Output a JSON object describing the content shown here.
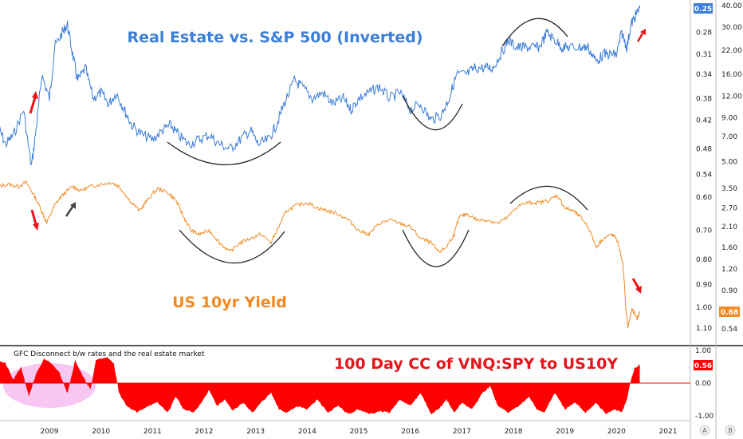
{
  "chart_data": [
    {
      "type": "line",
      "series": [
        {
          "name": "Real Estate vs. S&P 500 (Inverted)",
          "color": "#3b7dd8",
          "last_value_label": "0.25",
          "points": [
            [
              2008.0,
              0.43
            ],
            [
              2008.15,
              0.47
            ],
            [
              2008.3,
              0.45
            ],
            [
              2008.5,
              0.4
            ],
            [
              2008.65,
              0.52
            ],
            [
              2008.75,
              0.43
            ],
            [
              2008.85,
              0.34
            ],
            [
              2009.0,
              0.38
            ],
            [
              2009.1,
              0.3
            ],
            [
              2009.25,
              0.28
            ],
            [
              2009.35,
              0.27
            ],
            [
              2009.45,
              0.31
            ],
            [
              2009.55,
              0.35
            ],
            [
              2009.7,
              0.33
            ],
            [
              2009.85,
              0.38
            ],
            [
              2010.0,
              0.37
            ],
            [
              2010.15,
              0.39
            ],
            [
              2010.3,
              0.37
            ],
            [
              2010.45,
              0.4
            ],
            [
              2010.6,
              0.43
            ],
            [
              2010.8,
              0.45
            ],
            [
              2011.0,
              0.46
            ],
            [
              2011.2,
              0.44
            ],
            [
              2011.35,
              0.43
            ],
            [
              2011.5,
              0.45
            ],
            [
              2011.7,
              0.47
            ],
            [
              2011.9,
              0.46
            ],
            [
              2012.1,
              0.45
            ],
            [
              2012.3,
              0.47
            ],
            [
              2012.5,
              0.48
            ],
            [
              2012.7,
              0.46
            ],
            [
              2012.9,
              0.44
            ],
            [
              2013.05,
              0.47
            ],
            [
              2013.25,
              0.46
            ],
            [
              2013.4,
              0.43
            ],
            [
              2013.55,
              0.39
            ],
            [
              2013.75,
              0.35
            ],
            [
              2013.9,
              0.36
            ],
            [
              2014.1,
              0.38
            ],
            [
              2014.3,
              0.37
            ],
            [
              2014.5,
              0.39
            ],
            [
              2014.7,
              0.38
            ],
            [
              2014.85,
              0.4
            ],
            [
              2015.0,
              0.38
            ],
            [
              2015.2,
              0.37
            ],
            [
              2015.4,
              0.36
            ],
            [
              2015.6,
              0.38
            ],
            [
              2015.8,
              0.37
            ],
            [
              2016.0,
              0.4
            ],
            [
              2016.2,
              0.39
            ],
            [
              2016.4,
              0.42
            ],
            [
              2016.6,
              0.41
            ],
            [
              2016.75,
              0.38
            ],
            [
              2016.9,
              0.34
            ],
            [
              2017.1,
              0.34
            ],
            [
              2017.25,
              0.33
            ],
            [
              2017.45,
              0.33
            ],
            [
              2017.6,
              0.33
            ],
            [
              2017.75,
              0.31
            ],
            [
              2017.9,
              0.29
            ],
            [
              2018.05,
              0.3
            ],
            [
              2018.2,
              0.3
            ],
            [
              2018.35,
              0.3
            ],
            [
              2018.5,
              0.3
            ],
            [
              2018.65,
              0.28
            ],
            [
              2018.8,
              0.29
            ],
            [
              2018.95,
              0.3
            ],
            [
              2019.1,
              0.3
            ],
            [
              2019.3,
              0.3
            ],
            [
              2019.45,
              0.3
            ],
            [
              2019.6,
              0.32
            ],
            [
              2019.75,
              0.31
            ],
            [
              2019.9,
              0.31
            ],
            [
              2020.0,
              0.31
            ],
            [
              2020.1,
              0.28
            ],
            [
              2020.2,
              0.3
            ],
            [
              2020.28,
              0.27
            ],
            [
              2020.36,
              0.26
            ],
            [
              2020.45,
              0.25
            ]
          ]
        },
        {
          "name": "US 10yr Yield",
          "color": "#f08a24",
          "last_value_label": "0.68",
          "points": [
            [
              2008.0,
              3.6
            ],
            [
              2008.2,
              3.7
            ],
            [
              2008.4,
              3.6
            ],
            [
              2008.55,
              3.8
            ],
            [
              2008.7,
              3.2
            ],
            [
              2008.85,
              2.6
            ],
            [
              2008.95,
              2.2
            ],
            [
              2009.1,
              2.8
            ],
            [
              2009.25,
              3.2
            ],
            [
              2009.45,
              3.6
            ],
            [
              2009.6,
              3.4
            ],
            [
              2009.8,
              3.6
            ],
            [
              2010.0,
              3.7
            ],
            [
              2010.2,
              3.8
            ],
            [
              2010.35,
              3.6
            ],
            [
              2010.55,
              3.0
            ],
            [
              2010.75,
              2.6
            ],
            [
              2010.9,
              3.0
            ],
            [
              2011.1,
              3.5
            ],
            [
              2011.3,
              3.3
            ],
            [
              2011.45,
              3.0
            ],
            [
              2011.6,
              2.4
            ],
            [
              2011.75,
              2.0
            ],
            [
              2011.9,
              1.9
            ],
            [
              2012.1,
              2.0
            ],
            [
              2012.3,
              1.7
            ],
            [
              2012.5,
              1.5
            ],
            [
              2012.7,
              1.7
            ],
            [
              2012.9,
              1.8
            ],
            [
              2013.1,
              1.9
            ],
            [
              2013.3,
              1.7
            ],
            [
              2013.45,
              2.1
            ],
            [
              2013.6,
              2.6
            ],
            [
              2013.8,
              2.8
            ],
            [
              2014.0,
              2.9
            ],
            [
              2014.2,
              2.7
            ],
            [
              2014.4,
              2.6
            ],
            [
              2014.6,
              2.5
            ],
            [
              2014.8,
              2.3
            ],
            [
              2015.0,
              2.0
            ],
            [
              2015.2,
              1.9
            ],
            [
              2015.4,
              2.2
            ],
            [
              2015.6,
              2.3
            ],
            [
              2015.8,
              2.2
            ],
            [
              2016.0,
              2.1
            ],
            [
              2016.2,
              1.8
            ],
            [
              2016.4,
              1.7
            ],
            [
              2016.55,
              1.5
            ],
            [
              2016.7,
              1.6
            ],
            [
              2016.85,
              1.9
            ],
            [
              2016.95,
              2.4
            ],
            [
              2017.1,
              2.5
            ],
            [
              2017.3,
              2.3
            ],
            [
              2017.5,
              2.3
            ],
            [
              2017.7,
              2.2
            ],
            [
              2017.9,
              2.4
            ],
            [
              2018.1,
              2.8
            ],
            [
              2018.3,
              2.9
            ],
            [
              2018.5,
              2.9
            ],
            [
              2018.7,
              3.0
            ],
            [
              2018.85,
              3.2
            ],
            [
              2019.0,
              2.7
            ],
            [
              2019.15,
              2.6
            ],
            [
              2019.3,
              2.4
            ],
            [
              2019.45,
              2.1
            ],
            [
              2019.6,
              1.6
            ],
            [
              2019.75,
              1.8
            ],
            [
              2019.9,
              1.9
            ],
            [
              2020.0,
              1.8
            ],
            [
              2020.12,
              1.3
            ],
            [
              2020.18,
              0.7
            ],
            [
              2020.22,
              0.55
            ],
            [
              2020.3,
              0.7
            ],
            [
              2020.4,
              0.62
            ],
            [
              2020.45,
              0.68
            ]
          ]
        }
      ],
      "annotations": [
        "Real Estate vs. S&P 500 (Inverted)",
        "US 10yr Yield"
      ],
      "left_axis_ticks": [
        "0.25",
        "0.28",
        "0.31",
        "0.34",
        "0.38",
        "0.42",
        "0.48",
        "0.54",
        "0.60",
        "0.70",
        "0.80",
        "0.90",
        "1.00",
        "1.10"
      ],
      "right_axis_ticks": [
        "40.00",
        "30.00",
        "22.00",
        "16.00",
        "12.00",
        "9.00",
        "7.00",
        "5.00",
        "3.50",
        "2.70",
        "2.10",
        "1.60",
        "1.20",
        "0.90",
        "0.54"
      ],
      "grid": false
    },
    {
      "type": "area",
      "series": [
        {
          "name": "100 Day CC of VNQ:SPY to US10Y",
          "color": "#ff0000",
          "last_value_label": "0.56",
          "points": [
            [
              2008.0,
              0.7
            ],
            [
              2008.15,
              0.6
            ],
            [
              2008.3,
              0.1
            ],
            [
              2008.45,
              0.5
            ],
            [
              2008.6,
              -0.4
            ],
            [
              2008.75,
              0.3
            ],
            [
              2008.9,
              0.75
            ],
            [
              2009.05,
              0.6
            ],
            [
              2009.2,
              0.3
            ],
            [
              2009.35,
              -0.3
            ],
            [
              2009.5,
              0.7
            ],
            [
              2009.65,
              0.2
            ],
            [
              2009.8,
              -0.2
            ],
            [
              2009.9,
              0.7
            ],
            [
              2010.1,
              0.8
            ],
            [
              2010.25,
              0.6
            ],
            [
              2010.35,
              -0.3
            ],
            [
              2010.5,
              -0.7
            ],
            [
              2010.7,
              -0.9
            ],
            [
              2010.9,
              -0.7
            ],
            [
              2011.1,
              -0.6
            ],
            [
              2011.3,
              -0.9
            ],
            [
              2011.45,
              -0.4
            ],
            [
              2011.6,
              -0.8
            ],
            [
              2011.8,
              -0.9
            ],
            [
              2011.95,
              -0.6
            ],
            [
              2012.1,
              -0.2
            ],
            [
              2012.25,
              -0.7
            ],
            [
              2012.4,
              -0.5
            ],
            [
              2012.55,
              -0.85
            ],
            [
              2012.75,
              -0.6
            ],
            [
              2012.95,
              -0.9
            ],
            [
              2013.1,
              -0.6
            ],
            [
              2013.3,
              -0.3
            ],
            [
              2013.45,
              -0.8
            ],
            [
              2013.6,
              -0.9
            ],
            [
              2013.8,
              -0.7
            ],
            [
              2014.0,
              -0.8
            ],
            [
              2014.2,
              -0.5
            ],
            [
              2014.4,
              -0.9
            ],
            [
              2014.6,
              -0.7
            ],
            [
              2014.8,
              -0.95
            ],
            [
              2015.0,
              -0.8
            ],
            [
              2015.2,
              -0.95
            ],
            [
              2015.4,
              -0.85
            ],
            [
              2015.6,
              -0.9
            ],
            [
              2015.8,
              -0.5
            ],
            [
              2016.0,
              -0.7
            ],
            [
              2016.2,
              -0.3
            ],
            [
              2016.4,
              -0.95
            ],
            [
              2016.55,
              -0.8
            ],
            [
              2016.7,
              -0.5
            ],
            [
              2016.85,
              -0.9
            ],
            [
              2017.0,
              -0.6
            ],
            [
              2017.2,
              -0.8
            ],
            [
              2017.4,
              -0.3
            ],
            [
              2017.55,
              -0.1
            ],
            [
              2017.7,
              -0.7
            ],
            [
              2017.9,
              -0.9
            ],
            [
              2018.1,
              -0.7
            ],
            [
              2018.3,
              -0.4
            ],
            [
              2018.45,
              -0.8
            ],
            [
              2018.6,
              -0.9
            ],
            [
              2018.8,
              -0.3
            ],
            [
              2019.0,
              -0.8
            ],
            [
              2019.2,
              -0.6
            ],
            [
              2019.4,
              -0.9
            ],
            [
              2019.6,
              -0.6
            ],
            [
              2019.8,
              -0.95
            ],
            [
              2019.95,
              -0.8
            ],
            [
              2020.1,
              -0.9
            ],
            [
              2020.2,
              -0.5
            ],
            [
              2020.28,
              0.1
            ],
            [
              2020.35,
              0.45
            ],
            [
              2020.45,
              0.56
            ]
          ]
        }
      ],
      "annotations": [
        "GFC Disconnect b/w rates and the real estate market",
        "100 Day CC of VNQ:SPY to US10Y"
      ],
      "y_axis_ticks": [
        "1.00",
        "0.00",
        "-1.00"
      ],
      "ylim": [
        -1,
        1
      ]
    }
  ],
  "x_axis_ticks": [
    "2009",
    "2010",
    "2011",
    "2012",
    "2013",
    "2014",
    "2015",
    "2016",
    "2017",
    "2018",
    "2019",
    "2020",
    "2021"
  ],
  "corner_labels": [
    "A",
    "B"
  ],
  "colors": {
    "blue": "#3b7dd8",
    "orange": "#f08a24",
    "red": "#ff0000",
    "title_red": "#e8141b",
    "oval": "#f7c6f2",
    "arc": "#222222",
    "arrow_red": "#e8141b",
    "arrow_dark": "#444444"
  }
}
